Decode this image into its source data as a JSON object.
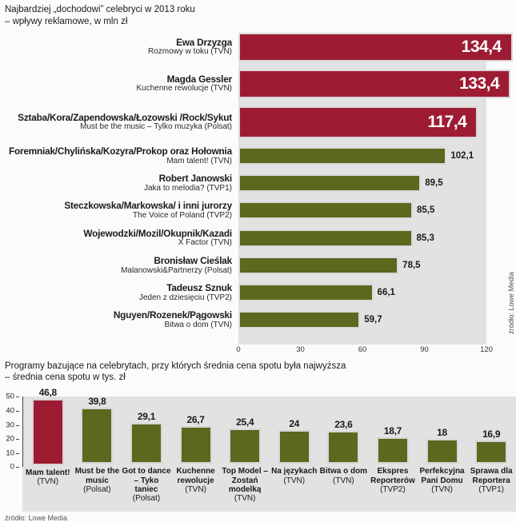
{
  "colors": {
    "red": "#9e1c33",
    "olive": "#5d671e",
    "plot_bg": "#e2e2e2"
  },
  "chart_data": [
    {
      "type": "bar",
      "orientation": "horizontal",
      "title": "Najbardziej „dochodowi” celebryci w 2013 roku",
      "subtitle": "– wpływy reklamowe, w mln zł",
      "xlim": [
        0,
        120
      ],
      "xticks": [
        0,
        30,
        60,
        90,
        120
      ],
      "grid": false,
      "source": "źródło: Lowe Media",
      "bars": [
        {
          "name": "Ewa Drzyzga",
          "program": "Rozmowy w toku (TVN)",
          "value": 134.4,
          "label": "134,4",
          "color": "red",
          "size": "large"
        },
        {
          "name": "Magda Gessler",
          "program": "Kuchenne rewolucje (TVN)",
          "value": 133.4,
          "label": "133,4",
          "color": "red",
          "size": "large"
        },
        {
          "name": "Sztaba/Kora/Zapendowska/Łozowski /Rock/Sykut",
          "program": "Must be the music – Tylko muzyka  (Polsat)",
          "value": 117.4,
          "label": "117,4",
          "color": "red",
          "size": "xlarge"
        },
        {
          "name": "Foremniak/Chylińska/Kozyra/Prokop oraz Hołownia",
          "program": "Mam talent! (TVN)",
          "value": 102.1,
          "label": "102,1",
          "color": "olive",
          "size": "small"
        },
        {
          "name": "Robert Janowski",
          "program": "Jaka to melodia? (TVP1)",
          "value": 89.5,
          "label": "89,5",
          "color": "olive",
          "size": "small"
        },
        {
          "name": "Steczkowska/Markowska/ i inni jurorzy",
          "program": "The Voice of Poland (TVP2)",
          "value": 85.5,
          "label": "85,5",
          "color": "olive",
          "size": "small"
        },
        {
          "name": "Wojewodzki/Mozil/Okupnik/Kazadi",
          "program": "X Factor (TVN)",
          "value": 85.3,
          "label": "85,3",
          "color": "olive",
          "size": "small"
        },
        {
          "name": "Bronisław Cieślak",
          "program": "Malanowski&Partnerzy (Polsat)",
          "value": 78.5,
          "label": "78,5",
          "color": "olive",
          "size": "small"
        },
        {
          "name": "Tadeusz Sznuk",
          "program": "Jeden z dziesięciu (TVP2)",
          "value": 66.1,
          "label": "66,1",
          "color": "olive",
          "size": "small"
        },
        {
          "name": "Nguyen/Rozenek/Pągowski",
          "program": "Bitwa o dom (TVN)",
          "value": 59.7,
          "label": "59,7",
          "color": "olive",
          "size": "small"
        }
      ]
    },
    {
      "type": "bar",
      "orientation": "vertical",
      "title": "Programy bazujące na celebrytach, przy których średnia cena spotu była najwyższa",
      "subtitle": "– średnia cena spotu w tys. zł",
      "ylim": [
        0,
        50
      ],
      "yticks": [
        50,
        40,
        30,
        20,
        10,
        0
      ],
      "grid": false,
      "source": "źródło: Lowe Media",
      "bars": [
        {
          "name": "Mam talent!",
          "channel": "(TVN)",
          "value": 46.8,
          "label": "46,8",
          "color": "red"
        },
        {
          "name": "Must be the music",
          "channel": "(Polsat)",
          "value": 39.8,
          "label": "39,8",
          "color": "olive"
        },
        {
          "name": "Got to dance – Tyko taniec",
          "channel": "(Polsat)",
          "value": 29.1,
          "label": "29,1",
          "color": "olive"
        },
        {
          "name": "Kuchenne rewolucje",
          "channel": "(TVN)",
          "value": 26.7,
          "label": "26,7",
          "color": "olive"
        },
        {
          "name": "Top Model – Zostań modelką",
          "channel": "(TVN)",
          "value": 25.4,
          "label": "25,4",
          "color": "olive"
        },
        {
          "name": "Na językach",
          "channel": "(TVN)",
          "value": 24,
          "label": "24",
          "color": "olive"
        },
        {
          "name": "Bitwa o dom",
          "channel": "(TVN)",
          "value": 23.6,
          "label": "23,6",
          "color": "olive"
        },
        {
          "name": "Ekspres Reporterów",
          "channel": "(TVP2)",
          "value": 18.7,
          "label": "18,7",
          "color": "olive"
        },
        {
          "name": "Perfekcyjna Pani Domu",
          "channel": "(TVN)",
          "value": 18,
          "label": "18",
          "color": "olive"
        },
        {
          "name": "Sprawa dla Reportera",
          "channel": "(TVP1)",
          "value": 16.9,
          "label": "16,9",
          "color": "olive"
        }
      ]
    }
  ]
}
